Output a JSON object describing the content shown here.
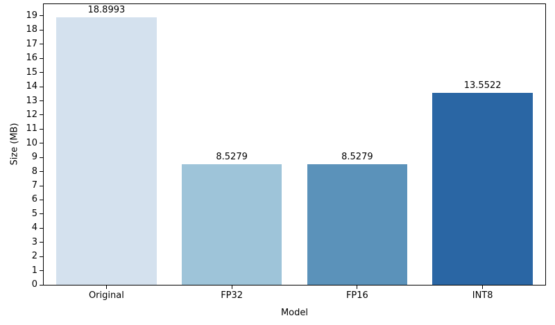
{
  "chart_data": {
    "type": "bar",
    "title": "",
    "xlabel": "Model",
    "ylabel": "Size (MB)",
    "categories": [
      "Original",
      "FP32",
      "FP16",
      "INT8"
    ],
    "values": [
      18.8993,
      8.5279,
      8.5279,
      13.5522
    ],
    "value_labels": [
      "18.8993",
      "8.5279",
      "8.5279",
      "13.5522"
    ],
    "bar_colors": [
      "#d4e1ee",
      "#9ec4d9",
      "#5b92ba",
      "#2a66a4"
    ],
    "ylim": [
      0,
      19.83
    ],
    "yticks": [
      0,
      1,
      2,
      3,
      4,
      5,
      6,
      7,
      8,
      9,
      10,
      11,
      12,
      13,
      14,
      15,
      16,
      17,
      18,
      19
    ],
    "grid": false,
    "legend": "none",
    "bar_width_fraction": 0.8,
    "spine_color": "#000000",
    "background_color": "#ffffff"
  }
}
